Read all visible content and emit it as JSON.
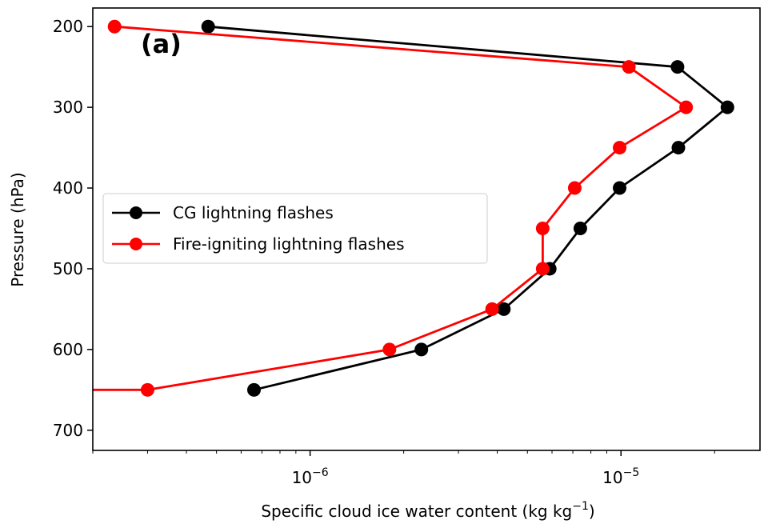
{
  "chart_data": {
    "type": "line",
    "panel_label": "(a)",
    "xlabel_main": "Specific cloud ice water content (kg kg",
    "xlabel_sup": "−1",
    "xlabel_close": ")",
    "ylabel": "Pressure (hPa)",
    "x_scale": "log",
    "y_inverted": true,
    "xlim": [
      2e-07,
      2.8e-05
    ],
    "ylim": [
      725,
      177
    ],
    "y_ticks": [
      200,
      300,
      400,
      500,
      600,
      700
    ],
    "y_tick_labels": [
      "200",
      "300",
      "400",
      "500",
      "600",
      "700"
    ],
    "x_major_ticks": [
      1e-06,
      1e-05
    ],
    "x_major_tick_labels": [
      {
        "base": "10",
        "exp": "−6"
      },
      {
        "base": "10",
        "exp": "−5"
      }
    ],
    "legend_position": "center-left",
    "series": [
      {
        "name": "CG lightning flashes",
        "color": "#000000",
        "points": [
          {
            "p": 200,
            "x": 4.7e-07
          },
          {
            "p": 250,
            "x": 1.52e-05
          },
          {
            "p": 300,
            "x": 2.2e-05
          },
          {
            "p": 350,
            "x": 1.53e-05
          },
          {
            "p": 400,
            "x": 9.9e-06
          },
          {
            "p": 450,
            "x": 7.4e-06
          },
          {
            "p": 500,
            "x": 5.9e-06
          },
          {
            "p": 550,
            "x": 4.2e-06
          },
          {
            "p": 600,
            "x": 2.28e-06
          },
          {
            "p": 650,
            "x": 6.6e-07
          }
        ]
      },
      {
        "name": "Fire-igniting lightning flashes",
        "color": "#ff0000",
        "points": [
          {
            "p": 200,
            "x": 2.35e-07
          },
          {
            "p": 250,
            "x": 1.06e-05
          },
          {
            "p": 300,
            "x": 1.62e-05
          },
          {
            "p": 350,
            "x": 9.9e-06
          },
          {
            "p": 400,
            "x": 7.1e-06
          },
          {
            "p": 450,
            "x": 5.6e-06
          },
          {
            "p": 500,
            "x": 5.6e-06
          },
          {
            "p": 550,
            "x": 3.85e-06
          },
          {
            "p": 600,
            "x": 1.8e-06
          },
          {
            "p": 650,
            "x": 3e-07
          },
          {
            "p": 650,
            "x": 2e-07
          }
        ]
      }
    ]
  }
}
